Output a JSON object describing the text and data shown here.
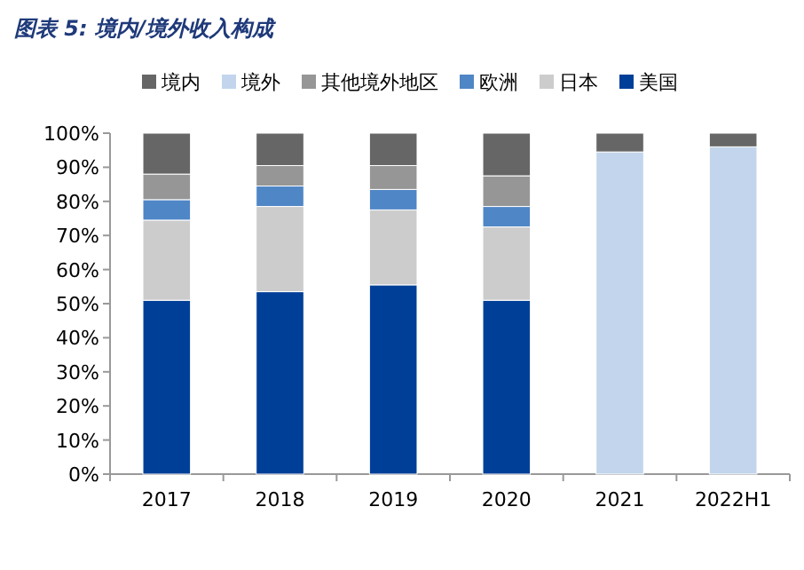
{
  "chart_data": {
    "type": "bar",
    "stacked": true,
    "title": "图表 5: 境内/境外收入构成",
    "categories": [
      "2017",
      "2018",
      "2019",
      "2020",
      "2021",
      "2022H1"
    ],
    "series": [
      {
        "name": "美国",
        "color": "#003f98",
        "values": [
          51,
          53.5,
          55.5,
          51,
          null,
          null
        ]
      },
      {
        "name": "日本",
        "color": "#cccccc",
        "values": [
          23.5,
          25,
          22,
          21.5,
          null,
          null
        ]
      },
      {
        "name": "欧洲",
        "color": "#4f86c6",
        "values": [
          6,
          6,
          6,
          6,
          null,
          null
        ]
      },
      {
        "name": "其他境外地区",
        "color": "#969696",
        "values": [
          7.5,
          6,
          7,
          9,
          null,
          null
        ]
      },
      {
        "name": "境外",
        "color": "#c2d5ec",
        "values": [
          null,
          null,
          null,
          null,
          94.5,
          96
        ]
      },
      {
        "name": "境内",
        "color": "#666666",
        "values": [
          12,
          9.5,
          9.5,
          12.5,
          5.5,
          4
        ]
      }
    ],
    "ylim": [
      0,
      100
    ],
    "yticks": [
      {
        "value": 0,
        "label": "0%"
      },
      {
        "value": 10,
        "label": "10%"
      },
      {
        "value": 20,
        "label": "20%"
      },
      {
        "value": 30,
        "label": "30%"
      },
      {
        "value": 40,
        "label": "40%"
      },
      {
        "value": 50,
        "label": "50%"
      },
      {
        "value": 60,
        "label": "60%"
      },
      {
        "value": 70,
        "label": "70%"
      },
      {
        "value": 80,
        "label": "80%"
      },
      {
        "value": 90,
        "label": "90%"
      },
      {
        "value": 100,
        "label": "100%"
      }
    ],
    "grid": false,
    "legend": "top"
  }
}
